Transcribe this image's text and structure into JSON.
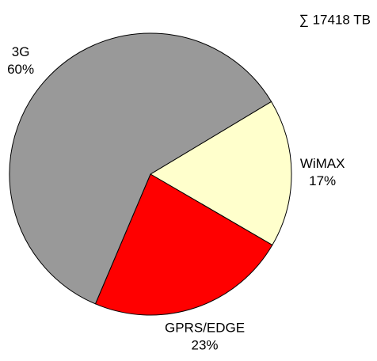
{
  "chart_data": {
    "type": "pie",
    "annotation": "∑ 17418 TB",
    "categories": [
      "WiMAX",
      "GPRS/EDGE",
      "3G"
    ],
    "values": [
      17,
      23,
      60
    ],
    "value_labels": [
      "17%",
      "23%",
      "60%"
    ],
    "colors": [
      "#ffffcc",
      "#ff0000",
      "#999999"
    ]
  }
}
